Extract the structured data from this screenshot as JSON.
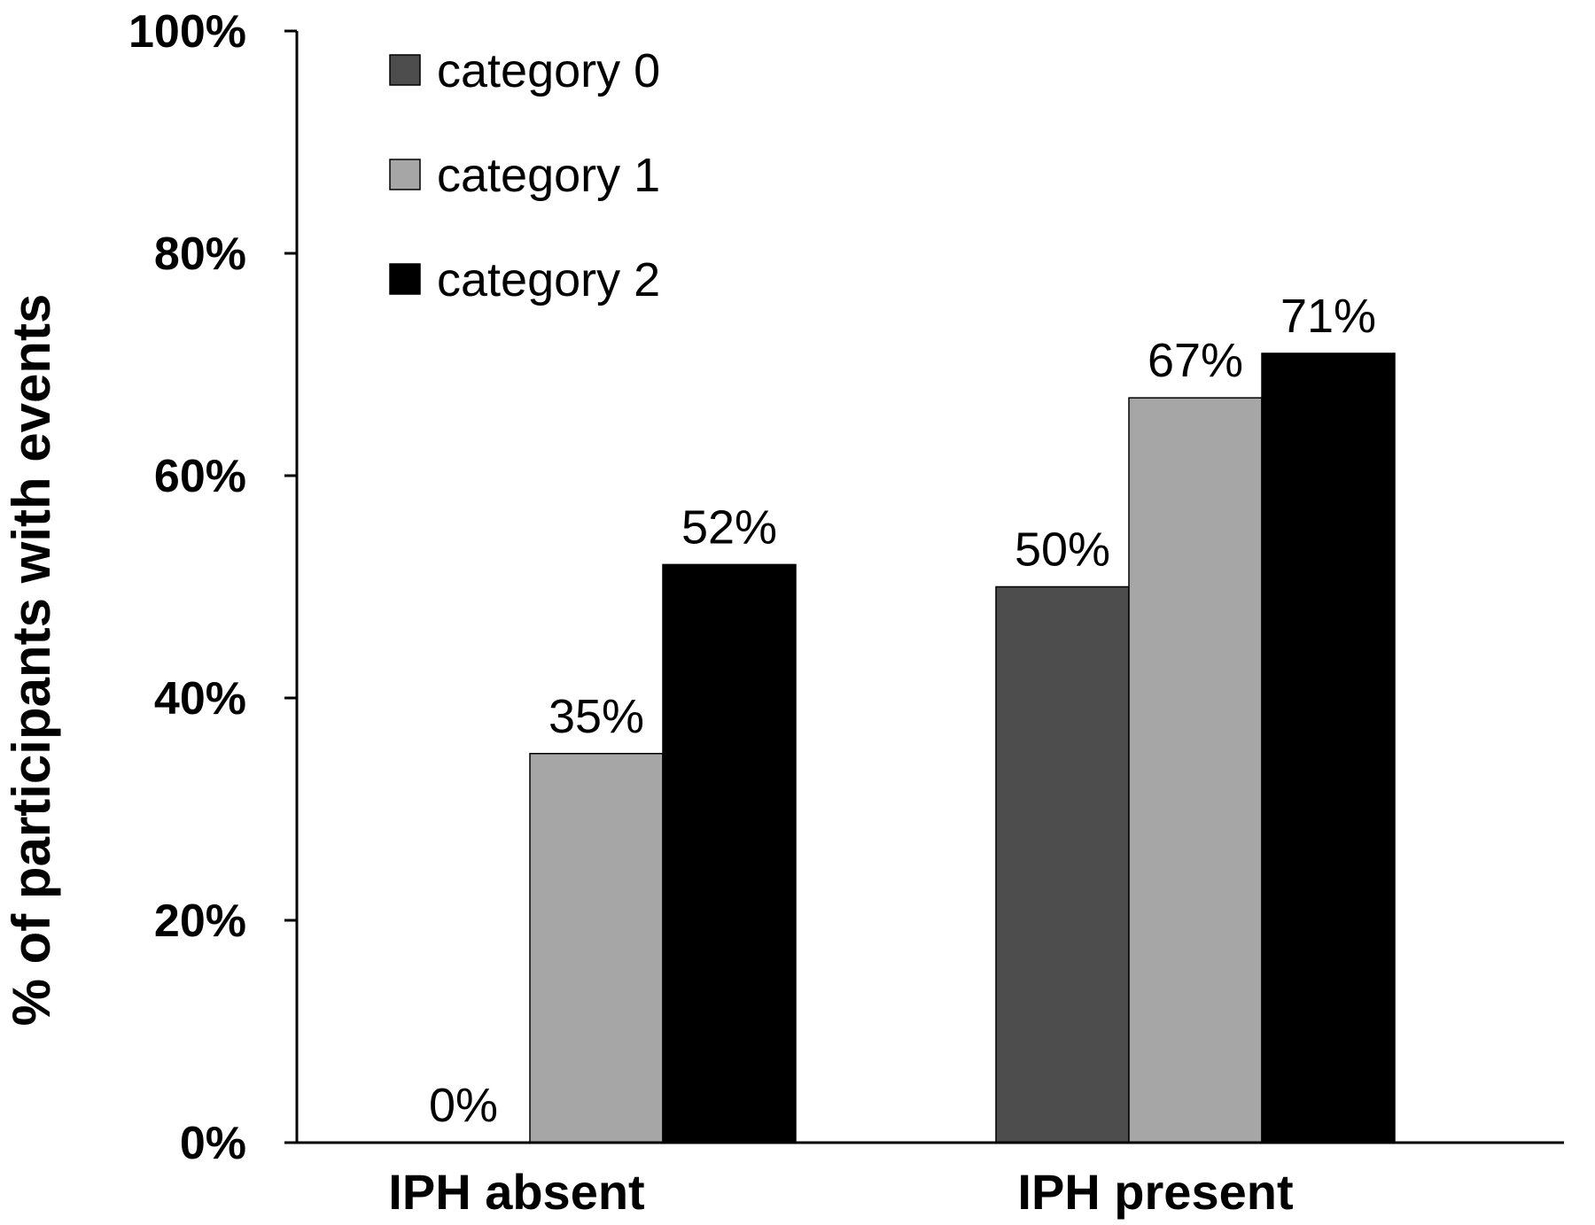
{
  "chart_data": {
    "type": "bar",
    "categories": [
      "IPH absent",
      "IPH present"
    ],
    "series": [
      {
        "name": "category 0",
        "values": [
          0,
          50
        ],
        "color": "#4d4d4d"
      },
      {
        "name": "category 1",
        "values": [
          35,
          67
        ],
        "color": "#a6a6a6"
      },
      {
        "name": "category 2",
        "values": [
          52,
          71
        ],
        "color": "#000000"
      }
    ],
    "data_labels": [
      [
        "0%",
        "50%"
      ],
      [
        "35%",
        "67%"
      ],
      [
        "52%",
        "71%"
      ]
    ],
    "ylabel": "% of participants with events",
    "xlabel": "",
    "ylim": [
      0,
      100
    ],
    "yticks": [
      0,
      20,
      40,
      60,
      80,
      100
    ],
    "ytick_labels": [
      "0%",
      "20%",
      "40%",
      "60%",
      "80%",
      "100%"
    ],
    "legend_position": "top-left",
    "grid": false
  }
}
